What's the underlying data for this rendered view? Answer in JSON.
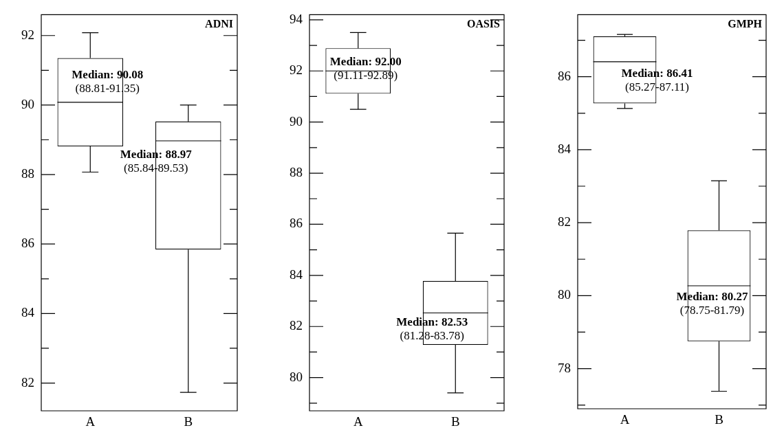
{
  "chart_data": [
    {
      "type": "box",
      "title": "ADNI",
      "categories": [
        "A",
        "B"
      ],
      "ylim": [
        81.2,
        92.6
      ],
      "yticks": [
        82,
        {
          "value": 83,
          "label": null
        },
        84,
        {
          "value": 85,
          "label": null
        },
        86,
        {
          "value": 87,
          "label": null
        },
        88,
        {
          "value": 89,
          "label": null
        },
        90,
        {
          "value": 91,
          "label": null
        },
        92
      ],
      "series": [
        {
          "color": "#000000",
          "boxes": [
            {
              "low": 88.07,
              "q1": 88.81,
              "median": 90.08,
              "q3": 91.35,
              "high": 92.08
            },
            {
              "low": 81.73,
              "q1": 85.84,
              "median": 88.97,
              "q3": 89.53,
              "high": 90.0
            }
          ]
        }
      ],
      "annotations": [
        "Median: 90.08\n(88.81-91.35)",
        "Median: 88.97\n(85.84-89.53)"
      ],
      "grid": false,
      "legend": false
    },
    {
      "type": "box",
      "title": "OASIS",
      "categories": [
        "A",
        "B"
      ],
      "ylim": [
        78.7,
        94.2
      ],
      "yticks": [
        {
          "value": 79,
          "label": null
        },
        80,
        {
          "value": 81,
          "label": null
        },
        82,
        {
          "value": 83,
          "label": null
        },
        84,
        {
          "value": 85,
          "label": null
        },
        86,
        {
          "value": 87,
          "label": null
        },
        88,
        {
          "value": 89,
          "label": null
        },
        90,
        {
          "value": 91,
          "label": null
        },
        92,
        {
          "value": 93,
          "label": null
        },
        94
      ],
      "series": [
        {
          "color": "#000000",
          "boxes": [
            {
              "low": 90.5,
              "q1": 91.11,
              "median": 92.0,
              "q3": 92.89,
              "high": 93.5
            },
            {
              "low": 79.4,
              "q1": 81.28,
              "median": 82.53,
              "q3": 83.78,
              "high": 85.65
            }
          ]
        }
      ],
      "annotations": [
        "Median: 92.00\n(91.11-92.89)",
        "Median: 82.53\n(81.28-83.78)"
      ],
      "grid": false,
      "legend": false
    },
    {
      "type": "box",
      "title": "GMPH",
      "categories": [
        "A",
        "B"
      ],
      "ylim": [
        76.9,
        87.7
      ],
      "yticks": [
        {
          "value": 77,
          "label": null
        },
        78,
        {
          "value": 79,
          "label": null
        },
        80,
        {
          "value": 81,
          "label": null
        },
        82,
        {
          "value": 83,
          "label": null
        },
        84,
        {
          "value": 85,
          "label": null
        },
        86,
        {
          "value": 87,
          "label": null
        }
      ],
      "series": [
        {
          "color": "#000000",
          "boxes": [
            {
              "low": 85.13,
              "q1": 85.27,
              "median": 86.41,
              "q3": 87.11,
              "high": 87.16
            },
            {
              "low": 77.38,
              "q1": 78.75,
              "median": 80.27,
              "q3": 81.79,
              "high": 83.15
            }
          ]
        }
      ],
      "annotations": [
        "Median: 86.41\n(85.27-87.11)",
        "Median: 80.27\n(78.75-81.79)"
      ],
      "grid": false,
      "legend": false
    }
  ]
}
